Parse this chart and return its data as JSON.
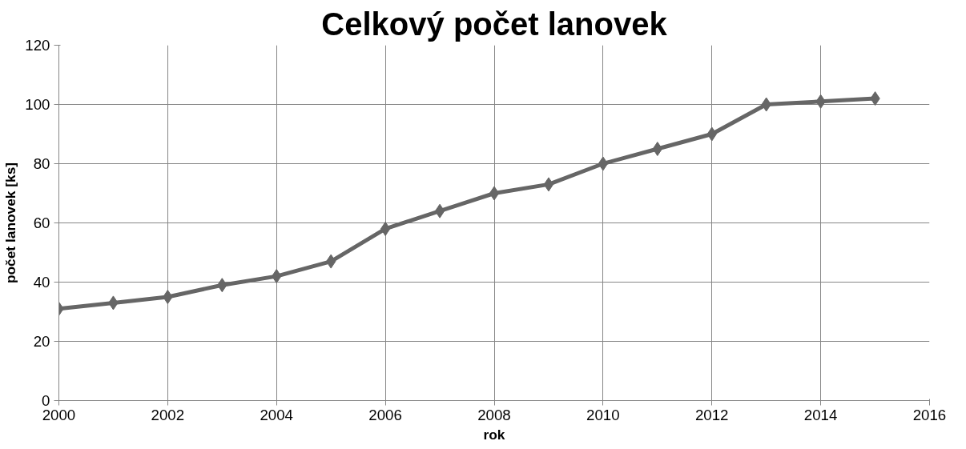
{
  "chart_data": {
    "type": "line",
    "title": "Celkový počet lanovek",
    "xlabel": "rok",
    "ylabel": "počet lanovek [ks]",
    "x": [
      2000,
      2001,
      2002,
      2003,
      2004,
      2005,
      2006,
      2007,
      2008,
      2009,
      2010,
      2011,
      2012,
      2013,
      2014,
      2015
    ],
    "series": [
      {
        "color": "#666666",
        "values": [
          31,
          33,
          35,
          39,
          42,
          47,
          58,
          64,
          70,
          73,
          80,
          85,
          90,
          100,
          101,
          102
        ]
      }
    ],
    "xlim": [
      2000,
      2016
    ],
    "xticks": [
      2000,
      2002,
      2004,
      2006,
      2008,
      2010,
      2012,
      2014,
      2016
    ],
    "ylim": [
      0,
      120
    ],
    "yticks": [
      0,
      20,
      40,
      60,
      80,
      100,
      120
    ],
    "grid": true,
    "marker": "diamond",
    "line_style": "solid"
  }
}
